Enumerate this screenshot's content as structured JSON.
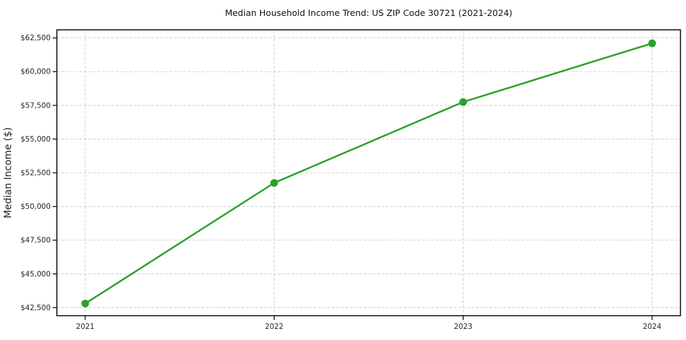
{
  "chart_data": {
    "type": "line",
    "title": "Median Household Income Trend: US ZIP Code 30721 (2021-2024)",
    "xlabel": "",
    "ylabel": "Median Income ($)",
    "x": [
      2021,
      2022,
      2023,
      2024
    ],
    "xtick_labels": [
      "2021",
      "2022",
      "2023",
      "2024"
    ],
    "series": [
      {
        "name": "Median Household Income",
        "values": [
          42800,
          51750,
          57750,
          62100
        ],
        "color": "#2ca02c",
        "marker": "circle"
      }
    ],
    "yticks": [
      42500,
      45000,
      47500,
      50000,
      52500,
      55000,
      57500,
      60000,
      62500
    ],
    "ytick_labels": [
      "$42,500",
      "$45,000",
      "$47,500",
      "$50,000",
      "$52,500",
      "$55,000",
      "$57,500",
      "$60,000",
      "$62,500"
    ],
    "xlim": [
      2020.85,
      2024.15
    ],
    "ylim": [
      41900,
      63100
    ],
    "grid": true,
    "grid_style": "dashed",
    "grid_color": "#d0d0d0",
    "axis_color": "#1a1a1a",
    "text_color": "#1f1f1f",
    "legend": "none",
    "background": "#ffffff"
  }
}
